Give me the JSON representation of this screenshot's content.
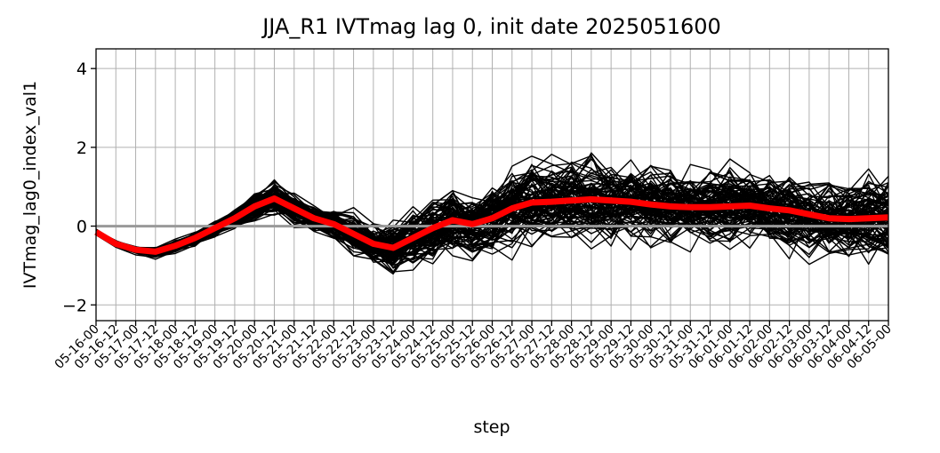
{
  "chart_data": {
    "type": "line",
    "title": "JJA_R1 IVTmag lag 0, init date 2025051600",
    "xlabel": "step",
    "ylabel": "IVTmag_lag0_index_val1",
    "ylim": [
      -2.4,
      4.5
    ],
    "yticks": [
      -2,
      0,
      2,
      4
    ],
    "ytick_labels": [
      "−2",
      "0",
      "2",
      "4"
    ],
    "grid": true,
    "categories": [
      "05-16-00",
      "05-16-12",
      "05-17-00",
      "05-17-12",
      "05-18-00",
      "05-18-12",
      "05-19-00",
      "05-19-12",
      "05-20-00",
      "05-20-12",
      "05-21-00",
      "05-21-12",
      "05-22-00",
      "05-22-12",
      "05-23-00",
      "05-23-12",
      "05-24-00",
      "05-24-12",
      "05-25-00",
      "05-25-12",
      "05-26-00",
      "05-26-12",
      "05-27-00",
      "05-27-12",
      "05-28-00",
      "05-28-12",
      "05-29-00",
      "05-29-12",
      "05-30-00",
      "05-30-12",
      "05-31-00",
      "05-31-12",
      "06-01-00",
      "06-01-12",
      "06-02-00",
      "06-02-12",
      "06-03-00",
      "06-03-12",
      "06-04-00",
      "06-04-12",
      "06-05-00"
    ],
    "reference_line": {
      "y": 0,
      "color": "#999999"
    },
    "ensemble": {
      "members": 100,
      "color": "#000000",
      "mean": [
        -0.15,
        -0.45,
        -0.6,
        -0.65,
        -0.5,
        -0.3,
        -0.05,
        0.2,
        0.5,
        0.7,
        0.45,
        0.2,
        0.05,
        -0.2,
        -0.45,
        -0.55,
        -0.3,
        -0.05,
        0.15,
        0.05,
        0.2,
        0.45,
        0.6,
        0.62,
        0.65,
        0.68,
        0.65,
        0.62,
        0.55,
        0.5,
        0.48,
        0.48,
        0.5,
        0.52,
        0.45,
        0.4,
        0.3,
        0.2,
        0.18,
        0.2,
        0.22
      ],
      "spread": [
        0.05,
        0.08,
        0.1,
        0.15,
        0.18,
        0.2,
        0.25,
        0.3,
        0.4,
        0.45,
        0.4,
        0.35,
        0.45,
        0.55,
        0.6,
        0.75,
        0.85,
        0.95,
        1.0,
        1.0,
        1.05,
        1.1,
        1.1,
        1.1,
        1.1,
        1.1,
        1.1,
        1.1,
        1.1,
        1.1,
        1.05,
        1.05,
        1.05,
        1.05,
        1.05,
        1.05,
        1.05,
        1.05,
        1.1,
        1.1,
        1.15
      ]
    },
    "series": [
      {
        "values": [
          -0.15,
          -0.45,
          -0.6,
          -0.65,
          -0.5,
          -0.3,
          -0.05,
          0.2,
          0.5,
          0.7,
          0.45,
          0.2,
          0.05,
          -0.2,
          -0.45,
          -0.55,
          -0.3,
          -0.05,
          0.15,
          0.05,
          0.2,
          0.45,
          0.6,
          0.62,
          0.65,
          0.68,
          0.65,
          0.62,
          0.55,
          0.5,
          0.48,
          0.48,
          0.5,
          0.52,
          0.45,
          0.4,
          0.3,
          0.2,
          0.18,
          0.2,
          0.22
        ],
        "color": "#ff0000"
      }
    ]
  }
}
